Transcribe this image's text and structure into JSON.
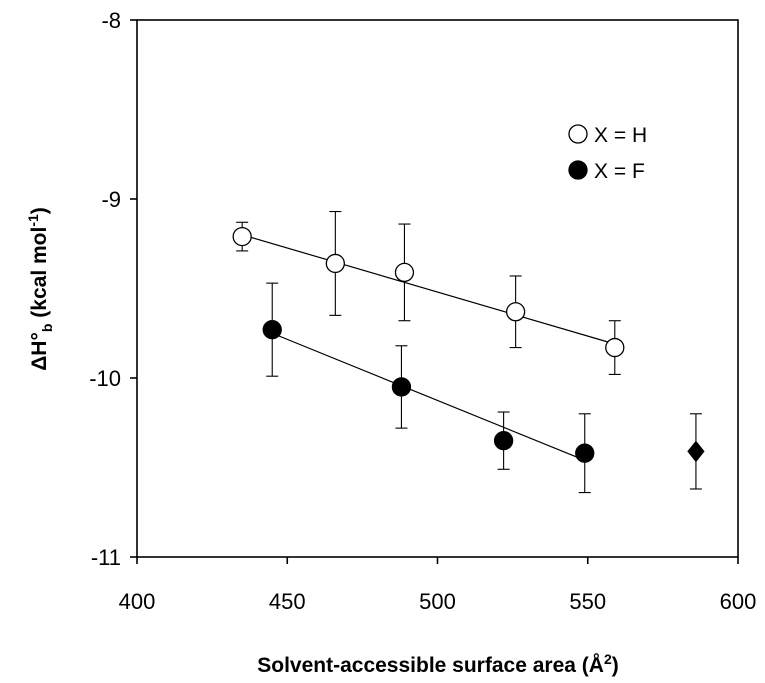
{
  "chart_data": {
    "type": "scatter",
    "title": "",
    "xlabel": "Solvent-accessible surface area (Å",
    "xlabel_sup": "2",
    "xlabel_suffix": ")",
    "ylabel": "ΔH°",
    "ylabel_sub": "b",
    "ylabel_mid": " (kcal mol",
    "ylabel_sup": "-1",
    "ylabel_suffix": ")",
    "xlim": [
      400,
      600
    ],
    "ylim": [
      -11,
      -8
    ],
    "xticks": [
      400,
      450,
      500,
      550,
      600
    ],
    "yticks": [
      -8,
      -9,
      -10,
      -11
    ],
    "xtick_labels": [
      "400",
      "450",
      "500",
      "550",
      "600"
    ],
    "ytick_labels": [
      "-8",
      "-9",
      "-10",
      "-11"
    ],
    "grid": false,
    "legend_position": "top-right",
    "series": [
      {
        "name": "X = H",
        "marker": "open-circle",
        "points": [
          {
            "x": 435,
            "y": -9.21,
            "err": 0.08
          },
          {
            "x": 466,
            "y": -9.36,
            "err": 0.29
          },
          {
            "x": 489,
            "y": -9.41,
            "err": 0.27
          },
          {
            "x": 526,
            "y": -9.63,
            "err": 0.2
          },
          {
            "x": 559,
            "y": -9.83,
            "err": 0.15
          }
        ],
        "fit": {
          "x": [
            435,
            559
          ],
          "y": [
            -9.2,
            -9.81
          ]
        }
      },
      {
        "name": "X = F",
        "marker": "filled-circle",
        "points": [
          {
            "x": 445,
            "y": -9.73,
            "err": 0.26
          },
          {
            "x": 488,
            "y": -10.05,
            "err": 0.23
          },
          {
            "x": 522,
            "y": -10.35,
            "err": 0.16
          },
          {
            "x": 549,
            "y": -10.42,
            "err": 0.22
          }
        ],
        "fit": {
          "x": [
            445,
            549
          ],
          "y": [
            -9.75,
            -10.46
          ]
        }
      },
      {
        "marker": "filled-diamond",
        "points": [
          {
            "x": 586,
            "y": -10.41,
            "err": 0.21
          }
        ]
      }
    ]
  }
}
